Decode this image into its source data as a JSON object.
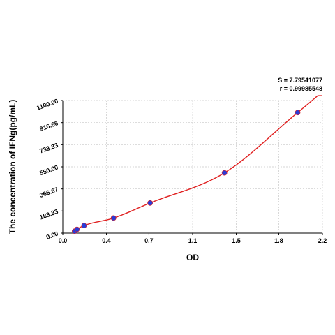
{
  "chart_data": {
    "type": "scatter",
    "xlabel": "OD",
    "ylabel": "The concentration of IFNg(pg/mL)",
    "xlim": [
      0.0,
      2.2
    ],
    "ylim": [
      0.0,
      1100.0
    ],
    "x_ticks": [
      "0.0",
      "0.4",
      "0.7",
      "1.1",
      "1.5",
      "1.8",
      "2.2"
    ],
    "x_tick_values": [
      0.0,
      0.37,
      0.73,
      1.1,
      1.47,
      1.83,
      2.2
    ],
    "y_ticks": [
      "0.00",
      "183.33",
      "366.67",
      "550.00",
      "733.33",
      "916.66",
      "1100.00"
    ],
    "y_tick_values": [
      0.0,
      183.33,
      366.67,
      550.0,
      733.33,
      916.66,
      1100.0
    ],
    "grid": true,
    "stats": {
      "s_text": "S = 7.79541077",
      "r_text": "r = 0.99985548"
    },
    "points": [
      {
        "x": 0.1,
        "y": 15.63
      },
      {
        "x": 0.12,
        "y": 31.25
      },
      {
        "x": 0.18,
        "y": 62.5
      },
      {
        "x": 0.43,
        "y": 125
      },
      {
        "x": 0.74,
        "y": 250
      },
      {
        "x": 1.37,
        "y": 500
      },
      {
        "x": 1.99,
        "y": 1000
      }
    ],
    "colors": {
      "points": "#2a3bd6",
      "curve": "#e02020",
      "grid": "#c8c8c8"
    }
  }
}
